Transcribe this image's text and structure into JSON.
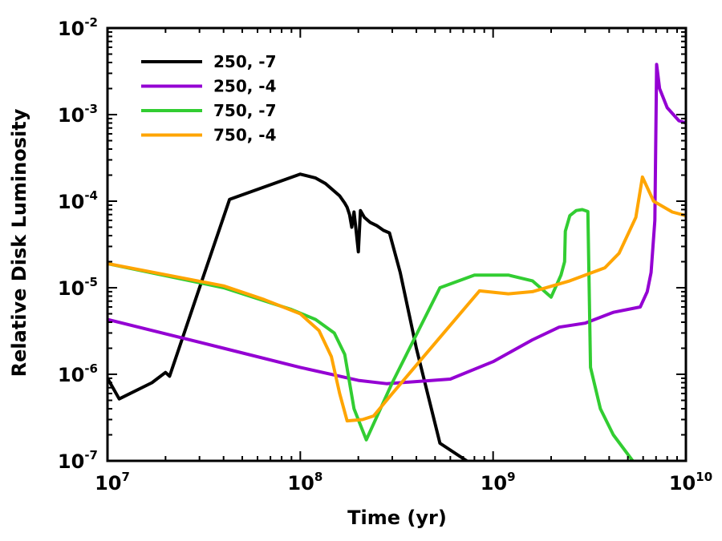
{
  "chart_data": {
    "type": "line",
    "xlabel": "Time (yr)",
    "ylabel": "Relative Disk Luminosity",
    "xscale": "log",
    "yscale": "log",
    "xlim": [
      10000000,
      10000000000
    ],
    "ylim": [
      1e-07,
      0.01
    ],
    "x_ticks": [
      {
        "base": "10",
        "exp": "7",
        "value": 10000000
      },
      {
        "base": "10",
        "exp": "8",
        "value": 100000000
      },
      {
        "base": "10",
        "exp": "9",
        "value": 1000000000
      },
      {
        "base": "10",
        "exp": "10",
        "value": 10000000000
      }
    ],
    "y_ticks": [
      {
        "base": "10",
        "exp": "-7",
        "value": 1e-07
      },
      {
        "base": "10",
        "exp": "-6",
        "value": 1e-06
      },
      {
        "base": "10",
        "exp": "-5",
        "value": 1e-05
      },
      {
        "base": "10",
        "exp": "-4",
        "value": 0.0001
      },
      {
        "base": "10",
        "exp": "-3",
        "value": 0.001
      },
      {
        "base": "10",
        "exp": "-2",
        "value": 0.01
      }
    ],
    "legend_position": "top-left",
    "series": [
      {
        "name": "250, -7",
        "color": "#000000",
        "points": [
          [
            10000000.0,
            9e-07
          ],
          [
            11500000.0,
            5.2e-07
          ],
          [
            17000000.0,
            8e-07
          ],
          [
            20000000.0,
            1.05e-06
          ],
          [
            21000000.0,
            9.5e-07
          ],
          [
            23500000.0,
            2e-06
          ],
          [
            30000000.0,
            1e-05
          ],
          [
            43000000.0,
            0.000105
          ],
          [
            100000000.0,
            0.000205
          ],
          [
            120000000.0,
            0.000185
          ],
          [
            135000000.0,
            0.00016
          ],
          [
            160000000.0,
            0.000115
          ],
          [
            170000000.0,
            9.5e-05
          ],
          [
            175000000.0,
            8.5e-05
          ],
          [
            180000000.0,
            7e-05
          ],
          [
            185000000.0,
            5e-05
          ],
          [
            190000000.0,
            7.5e-05
          ],
          [
            195000000.0,
            4.5e-05
          ],
          [
            200000000.0,
            2.6e-05
          ],
          [
            205000000.0,
            7.8e-05
          ],
          [
            215000000.0,
            6.5e-05
          ],
          [
            230000000.0,
            5.7e-05
          ],
          [
            250000000.0,
            5.2e-05
          ],
          [
            270000000.0,
            4.6e-05
          ],
          [
            290000000.0,
            4.3e-05
          ],
          [
            330000000.0,
            1.5e-05
          ],
          [
            400000000.0,
            2e-06
          ],
          [
            530000000.0,
            1.6e-07
          ],
          [
            730000000.0,
            1e-07
          ]
        ]
      },
      {
        "name": "250, -4",
        "color": "#9400D3",
        "points": [
          [
            10000000.0,
            4.3e-06
          ],
          [
            40000000.0,
            2e-06
          ],
          [
            100000000.0,
            1.2e-06
          ],
          [
            200000000.0,
            8.5e-07
          ],
          [
            280000000.0,
            7.8e-07
          ],
          [
            600000000.0,
            8.8e-07
          ],
          [
            1000000000.0,
            1.4e-06
          ],
          [
            1600000000.0,
            2.5e-06
          ],
          [
            2200000000.0,
            3.5e-06
          ],
          [
            3000000000.0,
            3.9e-06
          ],
          [
            4200000000.0,
            5.2e-06
          ],
          [
            5800000000.0,
            6e-06
          ],
          [
            6300000000.0,
            9e-06
          ],
          [
            6600000000.0,
            1.5e-05
          ],
          [
            6900000000.0,
            6e-05
          ],
          [
            7000000000.0,
            0.001
          ],
          [
            7050000000.0,
            0.0038
          ],
          [
            7300000000.0,
            0.002
          ],
          [
            8000000000.0,
            0.0012
          ],
          [
            9200000000.0,
            0.00085
          ],
          [
            10000000000.0,
            0.0008
          ]
        ]
      },
      {
        "name": "750, -7",
        "color": "#32CD32",
        "points": [
          [
            10000000.0,
            1.9e-05
          ],
          [
            40000000.0,
            1e-05
          ],
          [
            90000000.0,
            5.6e-06
          ],
          [
            120000000.0,
            4.3e-06
          ],
          [
            150000000.0,
            3e-06
          ],
          [
            170000000.0,
            1.7e-06
          ],
          [
            190000000.0,
            4e-07
          ],
          [
            220000000.0,
            1.75e-07
          ],
          [
            300000000.0,
            8e-07
          ],
          [
            530000000.0,
            1e-05
          ],
          [
            800000000.0,
            1.4e-05
          ],
          [
            1000000000.0,
            1.4e-05
          ],
          [
            1200000000.0,
            1.4e-05
          ],
          [
            1600000000.0,
            1.2e-05
          ],
          [
            2000000000.0,
            7.8e-06
          ],
          [
            2250000000.0,
            1.4e-05
          ],
          [
            2350000000.0,
            2e-05
          ],
          [
            2370000000.0,
            4.5e-05
          ],
          [
            2500000000.0,
            6.8e-05
          ],
          [
            2700000000.0,
            7.8e-05
          ],
          [
            2900000000.0,
            8e-05
          ],
          [
            3100000000.0,
            7.6e-05
          ],
          [
            3200000000.0,
            1.2e-06
          ],
          [
            3600000000.0,
            4e-07
          ],
          [
            4200000000.0,
            2e-07
          ],
          [
            5300000000.0,
            1e-07
          ]
        ]
      },
      {
        "name": "750, -4",
        "color": "#FFA500",
        "points": [
          [
            10000000.0,
            1.9e-05
          ],
          [
            40000000.0,
            1.05e-05
          ],
          [
            65000000.0,
            7.3e-06
          ],
          [
            100000000.0,
            5e-06
          ],
          [
            125000000.0,
            3.2e-06
          ],
          [
            145000000.0,
            1.6e-06
          ],
          [
            160000000.0,
            6e-07
          ],
          [
            175000000.0,
            2.9e-07
          ],
          [
            210000000.0,
            3e-07
          ],
          [
            240000000.0,
            3.3e-07
          ],
          [
            300000000.0,
            6e-07
          ],
          [
            850000000.0,
            9.2e-06
          ],
          [
            1200000000.0,
            8.5e-06
          ],
          [
            1600000000.0,
            9e-06
          ],
          [
            2500000000.0,
            1.2e-05
          ],
          [
            3800000000.0,
            1.7e-05
          ],
          [
            4500000000.0,
            2.5e-05
          ],
          [
            5500000000.0,
            6.5e-05
          ],
          [
            5950000000.0,
            0.00019
          ],
          [
            6800000000.0,
            0.0001
          ],
          [
            8500000000.0,
            7.5e-05
          ],
          [
            10000000000.0,
            6.8e-05
          ]
        ]
      }
    ]
  }
}
